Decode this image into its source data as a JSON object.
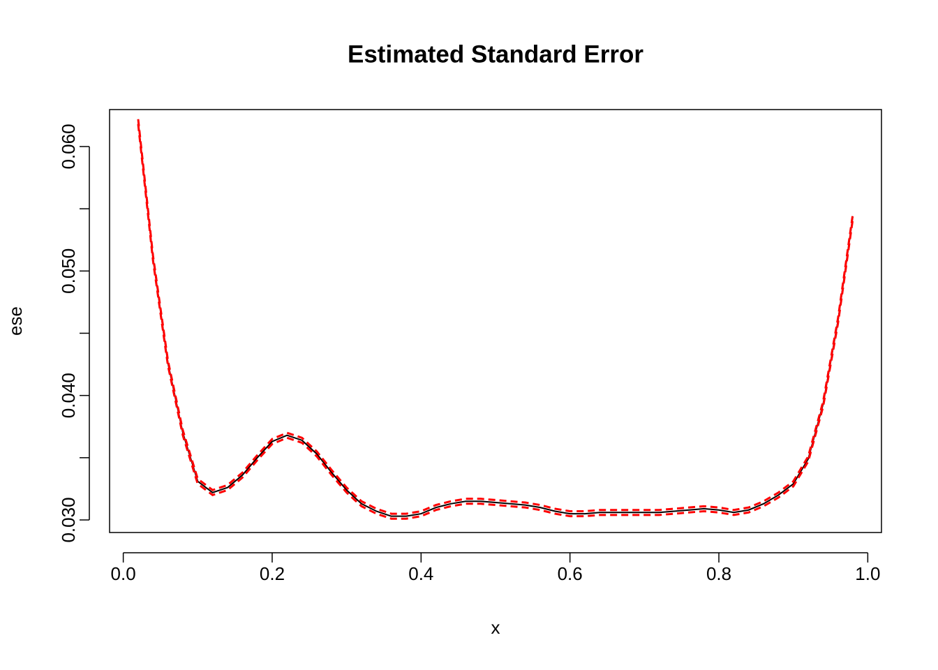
{
  "chart_data": {
    "type": "line",
    "title": "Estimated Standard Error",
    "xlabel": "x",
    "ylabel": "ese",
    "x": [
      0.02,
      0.04,
      0.06,
      0.08,
      0.1,
      0.12,
      0.14,
      0.16,
      0.18,
      0.2,
      0.22,
      0.24,
      0.26,
      0.28,
      0.3,
      0.32,
      0.34,
      0.36,
      0.38,
      0.4,
      0.42,
      0.44,
      0.46,
      0.48,
      0.5,
      0.52,
      0.54,
      0.56,
      0.58,
      0.6,
      0.62,
      0.64,
      0.66,
      0.68,
      0.7,
      0.72,
      0.74,
      0.76,
      0.78,
      0.8,
      0.82,
      0.84,
      0.86,
      0.88,
      0.9,
      0.92,
      0.94,
      0.96,
      0.98
    ],
    "series": [
      {
        "color": "#000000",
        "dash": false,
        "values": [
          0.062,
          0.051,
          0.0426,
          0.037,
          0.0331,
          0.0322,
          0.0326,
          0.0336,
          0.035,
          0.0363,
          0.0368,
          0.0364,
          0.0353,
          0.0338,
          0.0324,
          0.0313,
          0.0307,
          0.0303,
          0.0303,
          0.0305,
          0.031,
          0.0313,
          0.0315,
          0.0315,
          0.0314,
          0.0313,
          0.0312,
          0.031,
          0.0307,
          0.0305,
          0.0305,
          0.0306,
          0.0306,
          0.0306,
          0.0306,
          0.0306,
          0.0307,
          0.0308,
          0.0309,
          0.0308,
          0.0306,
          0.0308,
          0.0313,
          0.032,
          0.0329,
          0.0349,
          0.0393,
          0.046,
          0.0544
        ]
      },
      {
        "color": "#ff0000",
        "dash": true,
        "values": [
          0.0622,
          0.0512,
          0.0428,
          0.0372,
          0.0333,
          0.0324,
          0.0328,
          0.0338,
          0.0352,
          0.0365,
          0.037,
          0.0366,
          0.0355,
          0.034,
          0.0326,
          0.0315,
          0.0309,
          0.0305,
          0.0305,
          0.0307,
          0.0312,
          0.0315,
          0.0317,
          0.0317,
          0.0316,
          0.0315,
          0.0314,
          0.0312,
          0.0309,
          0.0307,
          0.0307,
          0.0308,
          0.0308,
          0.0308,
          0.0308,
          0.0308,
          0.0309,
          0.031,
          0.0311,
          0.031,
          0.0308,
          0.031,
          0.0315,
          0.0322,
          0.0331,
          0.0351,
          0.0395,
          0.0462,
          0.0546
        ]
      },
      {
        "color": "#ff0000",
        "dash": true,
        "values": [
          0.0618,
          0.0508,
          0.0424,
          0.0368,
          0.0329,
          0.032,
          0.0324,
          0.0334,
          0.0348,
          0.0361,
          0.0366,
          0.0362,
          0.0351,
          0.0336,
          0.0322,
          0.0311,
          0.0305,
          0.0301,
          0.0301,
          0.0303,
          0.0308,
          0.0311,
          0.0313,
          0.0313,
          0.0312,
          0.0311,
          0.031,
          0.0308,
          0.0305,
          0.0303,
          0.0303,
          0.0304,
          0.0304,
          0.0304,
          0.0304,
          0.0304,
          0.0305,
          0.0306,
          0.0307,
          0.0306,
          0.0304,
          0.0306,
          0.0311,
          0.0318,
          0.0327,
          0.0347,
          0.0391,
          0.0458,
          0.0542
        ]
      }
    ],
    "xlim": [
      -0.0184,
      1.0184
    ],
    "xticks": [
      {
        "value": 0,
        "label": "0.0"
      },
      0.2,
      0.4,
      0.6,
      0.8,
      {
        "value": 1,
        "label": "1.0"
      }
    ],
    "ylim": [
      0.02899,
      0.06297
    ],
    "yticks": [
      {
        "value": 0.03,
        "label": "0.030"
      },
      {
        "value": 0.04,
        "label": "0.040"
      },
      {
        "value": 0.05,
        "label": "0.050"
      },
      {
        "value": 0.06,
        "label": "0.060"
      }
    ],
    "yticks_unlabeled": [
      0.035,
      0.045,
      0.055
    ]
  }
}
